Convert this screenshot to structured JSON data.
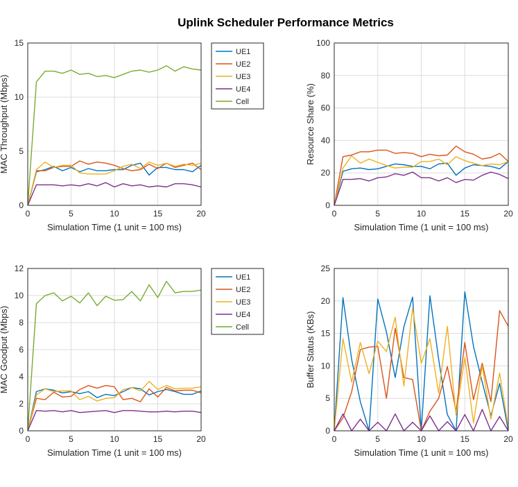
{
  "title": "Uplink Scheduler Performance Metrics",
  "colors": {
    "UE1": "#0072BD",
    "UE2": "#D95319",
    "UE3": "#EDB120",
    "UE4": "#7E2F8E",
    "Cell": "#77AC30"
  },
  "chart_data": [
    {
      "type": "line",
      "ylabel": "MAC Throughput (Mbps)",
      "xlabel": "Simulation Time (1 unit = 100 ms)",
      "xlim": [
        0,
        20
      ],
      "ylim": [
        0,
        15
      ],
      "xticks": [
        0,
        5,
        10,
        15,
        20
      ],
      "yticks": [
        0,
        5,
        10,
        15
      ],
      "grid": true,
      "legend": "right",
      "x": [
        0,
        1,
        2,
        3,
        4,
        5,
        6,
        7,
        8,
        9,
        10,
        11,
        12,
        13,
        14,
        15,
        16,
        17,
        18,
        19,
        20
      ],
      "series": [
        {
          "name": "UE1",
          "values": [
            0,
            3.1,
            3.3,
            3.6,
            3.2,
            3.5,
            3.1,
            3.4,
            3.2,
            3.2,
            3.3,
            3.3,
            3.7,
            3.9,
            2.8,
            3.5,
            3.5,
            3.3,
            3.3,
            3.1,
            3.7
          ]
        },
        {
          "name": "UE2",
          "values": [
            0,
            3.2,
            3.2,
            3.5,
            3.6,
            3.6,
            4.1,
            3.8,
            4.0,
            3.9,
            3.7,
            3.4,
            3.2,
            3.3,
            3.8,
            3.4,
            3.9,
            3.5,
            3.7,
            3.9,
            3.3
          ]
        },
        {
          "name": "UE3",
          "values": [
            0,
            3.3,
            4.0,
            3.5,
            3.7,
            3.7,
            3.0,
            2.9,
            2.9,
            2.9,
            3.2,
            3.6,
            3.8,
            3.4,
            4.0,
            3.7,
            3.9,
            3.6,
            3.8,
            3.7,
            3.9
          ]
        },
        {
          "name": "UE4",
          "values": [
            0,
            1.9,
            1.9,
            1.9,
            1.8,
            1.9,
            1.8,
            2.0,
            1.8,
            2.1,
            1.7,
            2.0,
            1.8,
            1.9,
            1.7,
            1.8,
            1.7,
            2.0,
            2.0,
            1.9,
            1.7
          ]
        },
        {
          "name": "Cell",
          "values": [
            0,
            11.4,
            12.4,
            12.4,
            12.2,
            12.5,
            12.1,
            12.2,
            11.9,
            12.0,
            11.8,
            12.1,
            12.4,
            12.5,
            12.3,
            12.5,
            12.9,
            12.4,
            12.8,
            12.6,
            12.5
          ]
        }
      ]
    },
    {
      "type": "line",
      "ylabel": "Resource Share (%)",
      "xlabel": "Simulation Time (1 unit = 100 ms)",
      "xlim": [
        0,
        20
      ],
      "ylim": [
        0,
        100
      ],
      "xticks": [
        0,
        5,
        10,
        15,
        20
      ],
      "yticks": [
        0,
        20,
        40,
        60,
        80,
        100
      ],
      "grid": true,
      "legend": "none",
      "x": [
        0,
        1,
        2,
        3,
        4,
        5,
        6,
        7,
        8,
        9,
        10,
        11,
        12,
        13,
        14,
        15,
        16,
        17,
        18,
        19,
        20
      ],
      "series": [
        {
          "name": "UE1",
          "values": [
            0,
            21,
            22.5,
            23,
            22,
            22.5,
            24,
            25.5,
            25,
            24,
            24,
            22.5,
            25.5,
            26,
            18.5,
            23,
            25,
            24.5,
            24,
            22.5,
            27
          ]
        },
        {
          "name": "UE2",
          "values": [
            0,
            30,
            31,
            33,
            33,
            34,
            34,
            32,
            32.5,
            32,
            30,
            31.5,
            30.5,
            31,
            36.5,
            33,
            31.5,
            28.5,
            29.5,
            32,
            27
          ]
        },
        {
          "name": "UE3",
          "values": [
            0,
            23,
            30.5,
            26,
            28.5,
            26.5,
            24.5,
            23,
            23.5,
            23.5,
            27,
            27,
            28.5,
            25,
            30,
            27.5,
            26,
            24.5,
            25.5,
            25,
            27
          ]
        },
        {
          "name": "UE4",
          "values": [
            0,
            16,
            16,
            16.5,
            15,
            17,
            17.5,
            19.5,
            18.5,
            20.5,
            17,
            17,
            15,
            17,
            14,
            16,
            15.5,
            18.5,
            20.5,
            19,
            16.5
          ]
        }
      ]
    },
    {
      "type": "line",
      "ylabel": "MAC Goodput (Mbps)",
      "xlabel": "Simulation Time (1 unit = 100 ms)",
      "xlim": [
        0,
        20
      ],
      "ylim": [
        0,
        12
      ],
      "xticks": [
        0,
        5,
        10,
        15,
        20
      ],
      "yticks": [
        0,
        2,
        4,
        6,
        8,
        10,
        12
      ],
      "grid": true,
      "legend": "right",
      "x": [
        0,
        1,
        2,
        3,
        4,
        5,
        6,
        7,
        8,
        9,
        10,
        11,
        12,
        13,
        14,
        15,
        16,
        17,
        18,
        19,
        20
      ],
      "series": [
        {
          "name": "UE1",
          "values": [
            0,
            2.9,
            3.1,
            3.0,
            2.8,
            2.9,
            2.75,
            2.9,
            2.45,
            2.7,
            2.6,
            2.9,
            3.2,
            3.1,
            2.65,
            2.9,
            3.05,
            2.9,
            2.7,
            2.7,
            2.95
          ]
        },
        {
          "name": "UE2",
          "values": [
            0,
            2.4,
            2.3,
            2.85,
            2.5,
            2.55,
            3.05,
            3.35,
            3.15,
            3.35,
            3.25,
            2.3,
            2.4,
            2.15,
            3.1,
            2.5,
            3.2,
            2.95,
            3.0,
            3.0,
            2.8
          ]
        },
        {
          "name": "UE3",
          "values": [
            0,
            2.65,
            3.1,
            2.9,
            2.95,
            2.95,
            2.3,
            2.55,
            2.2,
            2.4,
            2.45,
            3.05,
            3.2,
            2.95,
            3.65,
            3.05,
            3.35,
            3.1,
            3.15,
            3.15,
            3.25
          ]
        },
        {
          "name": "UE4",
          "values": [
            0,
            1.5,
            1.45,
            1.5,
            1.4,
            1.5,
            1.35,
            1.4,
            1.45,
            1.5,
            1.35,
            1.5,
            1.5,
            1.45,
            1.4,
            1.4,
            1.45,
            1.4,
            1.45,
            1.45,
            1.35
          ]
        },
        {
          "name": "Cell",
          "values": [
            0,
            9.4,
            10.0,
            10.2,
            9.6,
            9.95,
            9.45,
            10.2,
            9.25,
            9.95,
            9.65,
            9.7,
            10.3,
            9.6,
            10.8,
            9.85,
            11.05,
            10.2,
            10.3,
            10.3,
            10.4
          ]
        }
      ]
    },
    {
      "type": "line",
      "ylabel": "Buffer Status (KBs)",
      "xlabel": "Simulation Time (1 unit = 100 ms)",
      "xlim": [
        0,
        20
      ],
      "ylim": [
        0,
        25
      ],
      "xticks": [
        0,
        5,
        10,
        15,
        20
      ],
      "yticks": [
        0,
        5,
        10,
        15,
        20,
        25
      ],
      "grid": true,
      "legend": "none",
      "x": [
        0,
        1,
        2,
        3,
        4,
        5,
        6,
        7,
        8,
        9,
        10,
        11,
        12,
        13,
        14,
        15,
        16,
        17,
        18,
        19,
        20
      ],
      "series": [
        {
          "name": "UE1",
          "values": [
            0,
            20.5,
            11,
            4.5,
            0,
            20.3,
            15.2,
            8.2,
            16,
            20.6,
            0,
            20.8,
            11,
            2.5,
            0,
            21.4,
            13,
            7.5,
            2.3,
            7.3,
            0
          ]
        },
        {
          "name": "UE2",
          "values": [
            0,
            2,
            6,
            12.5,
            12.9,
            13,
            5,
            15.8,
            8.2,
            7.9,
            0,
            3,
            5,
            9.9,
            3,
            13.6,
            4.8,
            10.4,
            4.5,
            18.5,
            16.1
          ]
        },
        {
          "name": "UE3",
          "values": [
            0,
            14.2,
            7.5,
            13.6,
            8.8,
            13.8,
            12.2,
            17.5,
            6.9,
            18.9,
            10.4,
            14.2,
            5.8,
            16.1,
            2.4,
            11.3,
            1.2,
            10,
            1.8,
            8.9,
            0.5
          ]
        },
        {
          "name": "UE4",
          "values": [
            0,
            2.6,
            0,
            1.8,
            0,
            1.3,
            0,
            2.6,
            0,
            1.3,
            0,
            2.3,
            0,
            1.4,
            0,
            2.5,
            0,
            3.3,
            0,
            2.2,
            0
          ]
        }
      ]
    }
  ]
}
